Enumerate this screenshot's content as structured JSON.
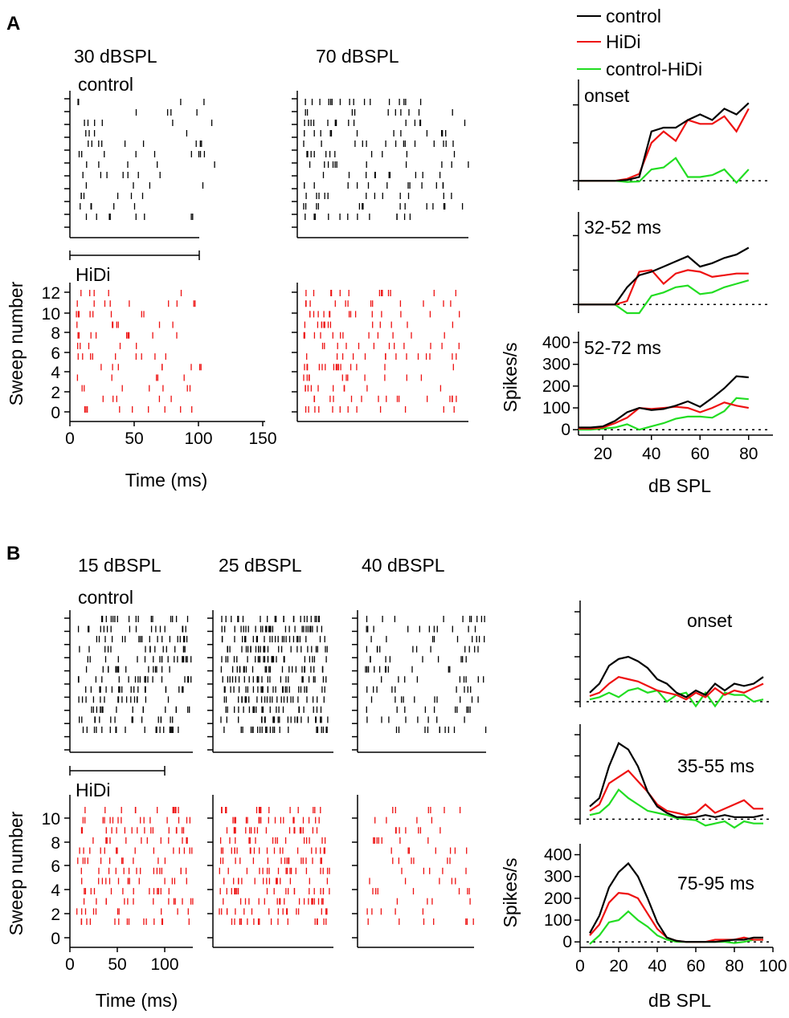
{
  "colors": {
    "control": "#000000",
    "hidi": "#ee1111",
    "diff": "#22dd22",
    "axis": "#000000"
  },
  "legend": {
    "control": "control",
    "hidi": "HiDi",
    "diff": "control-HiDi"
  },
  "panelA": {
    "label": "A",
    "raster": {
      "columns": [
        "30 dBSPL",
        "70 dBSPL"
      ],
      "control_label": "control",
      "hidi_label": "HiDi",
      "ylabel": "Sweep number",
      "xlabel": "Time (ms)",
      "xticks": [
        "0",
        "50",
        "100",
        "150"
      ],
      "yticks": [
        "0",
        "2",
        "4",
        "6",
        "8",
        "10",
        "12"
      ]
    },
    "curves": {
      "titles": [
        "onset",
        "32-52 ms",
        "52-72 ms"
      ],
      "ylabel": "Spikes/s",
      "xlabel": "dB SPL"
    }
  },
  "panelB": {
    "label": "B",
    "raster": {
      "columns": [
        "15 dBSPL",
        "25 dBSPL",
        "40 dBSPL"
      ],
      "control_label": "control",
      "hidi_label": "HiDi",
      "ylabel": "Sweep number",
      "xlabel": "Time (ms)",
      "xticks": [
        "0",
        "50",
        "100"
      ],
      "yticks": [
        "0",
        "2",
        "4",
        "6",
        "8",
        "10"
      ]
    },
    "curves": {
      "titles": [
        "onset",
        "35-55 ms",
        "75-95 ms"
      ],
      "ylabel": "Spikes/s",
      "xlabel": "dB SPL"
    }
  },
  "chart_data": [
    {
      "type": "line",
      "title": "onset",
      "panel": "A",
      "xlabel": "dB SPL",
      "ylabel": "Spikes/s",
      "xlim": [
        10,
        90
      ],
      "ylim": [
        -25,
        250
      ],
      "x": [
        10,
        15,
        20,
        25,
        30,
        35,
        40,
        45,
        50,
        55,
        60,
        65,
        70,
        75,
        80
      ],
      "series": [
        {
          "name": "control",
          "values": [
            0,
            0,
            0,
            0,
            2,
            10,
            130,
            140,
            140,
            160,
            175,
            160,
            190,
            175,
            205
          ]
        },
        {
          "name": "HiDi",
          "values": [
            0,
            0,
            0,
            0,
            5,
            18,
            100,
            130,
            105,
            160,
            150,
            150,
            170,
            130,
            190
          ]
        },
        {
          "name": "control-HiDi",
          "values": [
            0,
            0,
            0,
            0,
            -3,
            -2,
            30,
            35,
            60,
            10,
            10,
            15,
            30,
            -5,
            30
          ]
        }
      ]
    },
    {
      "type": "line",
      "title": "32-52 ms",
      "panel": "A",
      "xlabel": "dB SPL",
      "ylabel": "Spikes/s",
      "xlim": [
        10,
        90
      ],
      "ylim": [
        -25,
        250
      ],
      "x": [
        10,
        15,
        20,
        25,
        30,
        35,
        40,
        45,
        50,
        55,
        60,
        65,
        70,
        75,
        80
      ],
      "series": [
        {
          "name": "control",
          "values": [
            0,
            0,
            0,
            0,
            50,
            85,
            95,
            110,
            125,
            140,
            110,
            120,
            135,
            145,
            165
          ]
        },
        {
          "name": "HiDi",
          "values": [
            0,
            0,
            0,
            0,
            10,
            95,
            100,
            60,
            90,
            100,
            95,
            80,
            85,
            90,
            90
          ]
        },
        {
          "name": "control-HiDi",
          "values": [
            0,
            0,
            0,
            0,
            -25,
            -25,
            25,
            35,
            50,
            55,
            30,
            35,
            50,
            60,
            70
          ]
        }
      ]
    },
    {
      "type": "line",
      "title": "52-72 ms",
      "panel": "A",
      "xlabel": "dB SPL",
      "ylabel": "Spikes/s",
      "xlim": [
        10,
        90
      ],
      "ylim": [
        -25,
        450
      ],
      "x": [
        10,
        15,
        20,
        25,
        30,
        35,
        40,
        45,
        50,
        55,
        60,
        65,
        70,
        75,
        80
      ],
      "series": [
        {
          "name": "control",
          "values": [
            10,
            10,
            15,
            40,
            80,
            100,
            90,
            95,
            110,
            130,
            105,
            145,
            190,
            245,
            240
          ]
        },
        {
          "name": "HiDi",
          "values": [
            5,
            5,
            10,
            30,
            55,
            100,
            95,
            100,
            105,
            100,
            80,
            100,
            125,
            110,
            100
          ]
        },
        {
          "name": "control-HiDi",
          "values": [
            0,
            0,
            5,
            10,
            25,
            0,
            15,
            30,
            50,
            60,
            60,
            55,
            85,
            145,
            140
          ]
        }
      ]
    },
    {
      "type": "line",
      "title": "onset",
      "panel": "B",
      "xlabel": "dB SPL",
      "ylabel": "Spikes/s",
      "xlim": [
        0,
        100
      ],
      "ylim": [
        -25,
        450
      ],
      "x": [
        5,
        10,
        15,
        20,
        25,
        30,
        35,
        40,
        45,
        50,
        55,
        60,
        65,
        70,
        75,
        80,
        85,
        90,
        95
      ],
      "series": [
        {
          "name": "control",
          "values": [
            40,
            80,
            160,
            190,
            200,
            180,
            150,
            100,
            80,
            40,
            20,
            50,
            30,
            80,
            50,
            80,
            70,
            80,
            110
          ]
        },
        {
          "name": "HiDi",
          "values": [
            25,
            40,
            80,
            110,
            100,
            90,
            70,
            50,
            40,
            30,
            10,
            40,
            20,
            60,
            30,
            50,
            40,
            60,
            80
          ]
        },
        {
          "name": "control-HiDi",
          "values": [
            10,
            20,
            40,
            20,
            50,
            60,
            40,
            50,
            0,
            30,
            40,
            -20,
            40,
            -20,
            40,
            30,
            30,
            0,
            10
          ]
        }
      ]
    },
    {
      "type": "line",
      "title": "35-55 ms",
      "panel": "B",
      "xlabel": "dB SPL",
      "ylabel": "Spikes/s",
      "xlim": [
        0,
        100
      ],
      "ylim": [
        -25,
        450
      ],
      "x": [
        5,
        10,
        15,
        20,
        25,
        30,
        35,
        40,
        45,
        50,
        55,
        60,
        65,
        70,
        75,
        80,
        85,
        90,
        95
      ],
      "series": [
        {
          "name": "control",
          "values": [
            60,
            100,
            250,
            360,
            330,
            250,
            130,
            60,
            30,
            10,
            10,
            10,
            20,
            10,
            20,
            10,
            10,
            10,
            20
          ]
        },
        {
          "name": "HiDi",
          "values": [
            40,
            70,
            170,
            200,
            230,
            180,
            130,
            70,
            40,
            30,
            20,
            30,
            70,
            30,
            50,
            70,
            90,
            50,
            50
          ]
        },
        {
          "name": "control-HiDi",
          "values": [
            20,
            30,
            70,
            140,
            100,
            70,
            40,
            30,
            20,
            5,
            0,
            -5,
            -30,
            -20,
            -10,
            -40,
            -10,
            -20,
            -20
          ]
        }
      ]
    },
    {
      "type": "line",
      "title": "75-95 ms",
      "panel": "B",
      "xlabel": "dB SPL",
      "ylabel": "Spikes/s",
      "xlim": [
        0,
        100
      ],
      "ylim": [
        -25,
        450
      ],
      "x": [
        5,
        10,
        15,
        20,
        25,
        30,
        35,
        40,
        45,
        50,
        55,
        60,
        65,
        70,
        75,
        80,
        85,
        90,
        95
      ],
      "series": [
        {
          "name": "control",
          "values": [
            40,
            120,
            250,
            320,
            360,
            300,
            200,
            90,
            20,
            5,
            0,
            0,
            0,
            0,
            5,
            10,
            10,
            20,
            20
          ]
        },
        {
          "name": "HiDi",
          "values": [
            30,
            80,
            180,
            225,
            220,
            200,
            130,
            60,
            20,
            5,
            0,
            0,
            0,
            10,
            10,
            10,
            20,
            10,
            10
          ]
        },
        {
          "name": "control-HiDi",
          "values": [
            -10,
            30,
            90,
            100,
            140,
            100,
            70,
            30,
            10,
            0,
            0,
            0,
            0,
            0,
            0,
            -5,
            0,
            10,
            10
          ]
        }
      ]
    }
  ]
}
